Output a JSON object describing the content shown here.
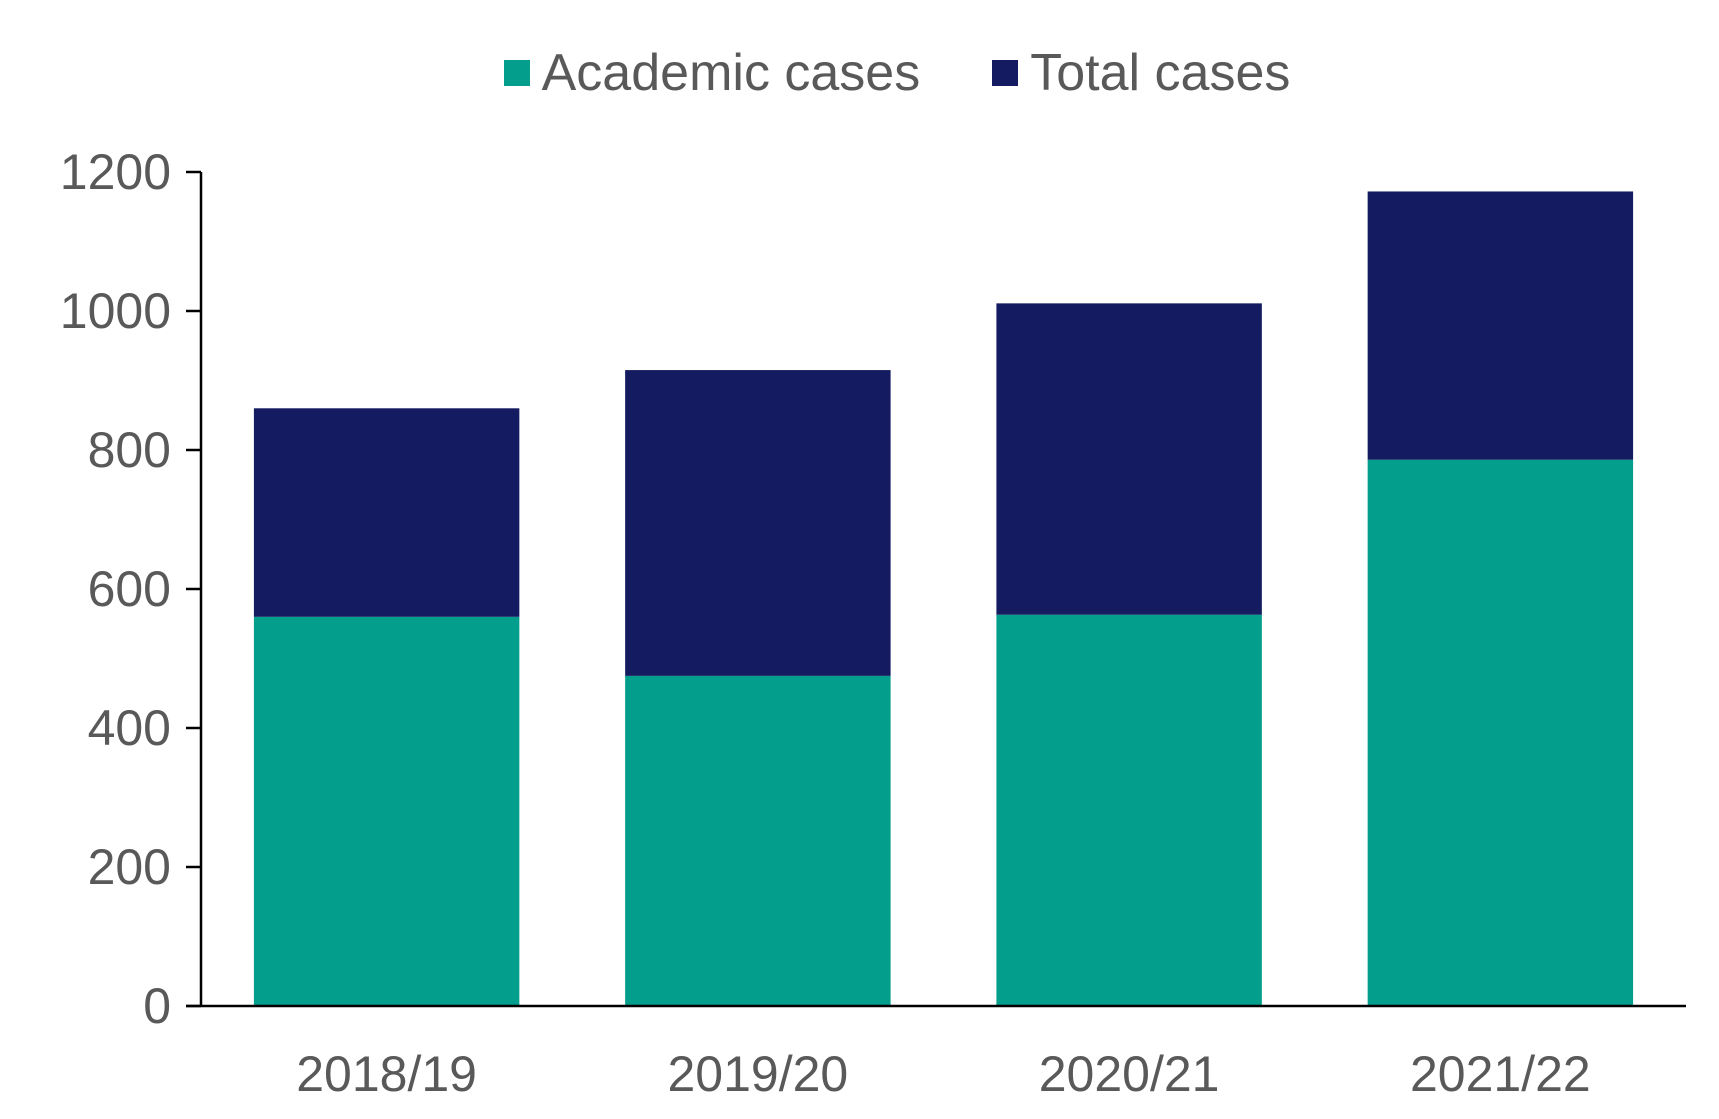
{
  "legend": {
    "items": [
      {
        "label": "Academic cases",
        "color": "#049e8c"
      },
      {
        "label": "Total cases",
        "color": "#141b61"
      }
    ]
  },
  "chart_data": {
    "type": "bar",
    "stacked": true,
    "categories": [
      "2018/19",
      "2019/20",
      "2020/21",
      "2021/22"
    ],
    "series": [
      {
        "name": "Academic cases",
        "color": "#049e8c",
        "values": [
          560,
          475,
          563,
          786
        ]
      },
      {
        "name": "Total cases",
        "color": "#141b61",
        "values": [
          300,
          440,
          448,
          386
        ]
      }
    ],
    "stack_totals": [
      860,
      915,
      1011,
      1172
    ],
    "ylim": [
      0,
      1200
    ],
    "yticks": [
      0,
      200,
      400,
      600,
      800,
      1000,
      1200
    ],
    "grid": false,
    "legend_position": "top-center",
    "title": "",
    "xlabel": "",
    "ylabel": ""
  }
}
